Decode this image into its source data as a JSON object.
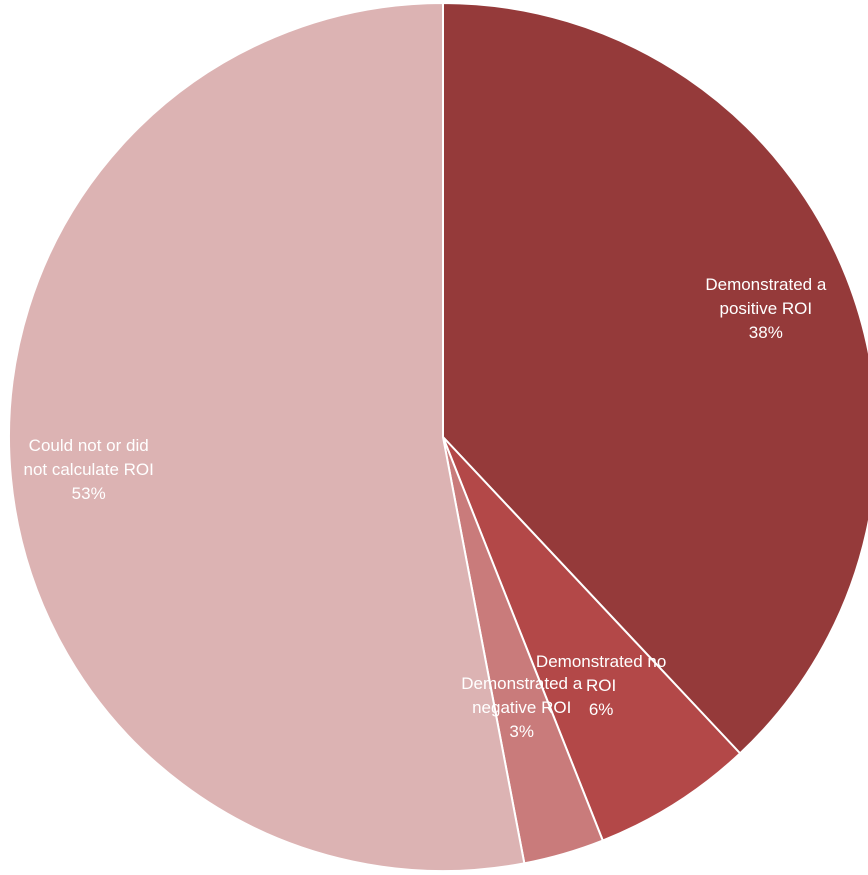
{
  "chart_data": {
    "type": "pie",
    "title": "",
    "start_angle_deg": 0,
    "direction": "clockwise",
    "slices": [
      {
        "label_lines": [
          "Demonstrated a",
          "positive ROI"
        ],
        "value": 38,
        "value_label": "38%",
        "color": "#953A3A"
      },
      {
        "label_lines": [
          "Demonstrated no",
          "ROI"
        ],
        "value": 6,
        "value_label": "6%",
        "color": "#B34848"
      },
      {
        "label_lines": [
          "Demonstrated a",
          "negative ROI"
        ],
        "value": 3,
        "value_label": "3%",
        "color": "#C97B7B"
      },
      {
        "label_lines": [
          "Could not or did",
          "not calculate ROI"
        ],
        "value": 53,
        "value_label": "53%",
        "color": "#DCB3B3"
      }
    ],
    "legend": "none",
    "label_color": "#FFFFFF",
    "separator_color": "#FFFFFF"
  }
}
